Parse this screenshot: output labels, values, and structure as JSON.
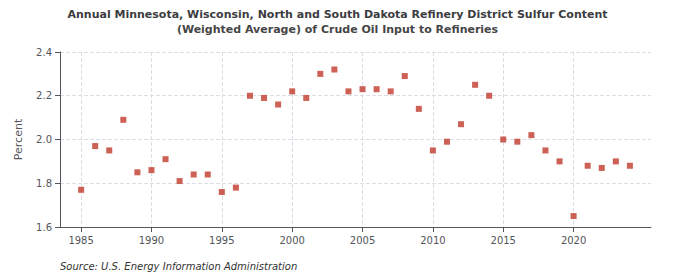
{
  "chart_data": {
    "type": "scatter",
    "title": "Annual Minnesota, Wisconsin, North and South Dakota Refinery District Sulfur Content",
    "subtitle": "(Weighted Average) of Crude Oil Input to Refineries",
    "ylabel": "Percent",
    "annotations": [
      "Source: U.S. Energy Information Administration"
    ],
    "x": [
      1985,
      1986,
      1987,
      1988,
      1989,
      1990,
      1991,
      1992,
      1993,
      1994,
      1995,
      1996,
      1997,
      1998,
      1999,
      2000,
      2001,
      2002,
      2003,
      2004,
      2005,
      2006,
      2007,
      2008,
      2009,
      2010,
      2011,
      2012,
      2013,
      2014,
      2015,
      2016,
      2017,
      2018,
      2019,
      2020,
      2021,
      2022,
      2023,
      2024
    ],
    "values": [
      1.77,
      1.97,
      1.95,
      2.09,
      1.85,
      1.86,
      1.91,
      1.81,
      1.84,
      1.84,
      1.76,
      1.78,
      2.2,
      2.19,
      2.16,
      2.22,
      2.19,
      2.3,
      2.32,
      2.22,
      2.23,
      2.23,
      2.22,
      2.29,
      2.14,
      1.95,
      1.99,
      2.07,
      2.25,
      2.2,
      2.0,
      1.99,
      2.02,
      1.95,
      1.9,
      1.65,
      1.88,
      1.87,
      1.9,
      1.88
    ],
    "color": "#c0392b",
    "marker": "square",
    "xlim": [
      1983.5,
      2025.5
    ],
    "xticks": [
      1985,
      1990,
      1995,
      2000,
      2005,
      2010,
      2015,
      2020
    ],
    "ylim": [
      1.6,
      2.4
    ],
    "yticks": [
      1.6,
      1.8,
      {
        "value": 2.0,
        "label": "2.0"
      },
      2.2,
      2.4
    ],
    "grid": true
  }
}
